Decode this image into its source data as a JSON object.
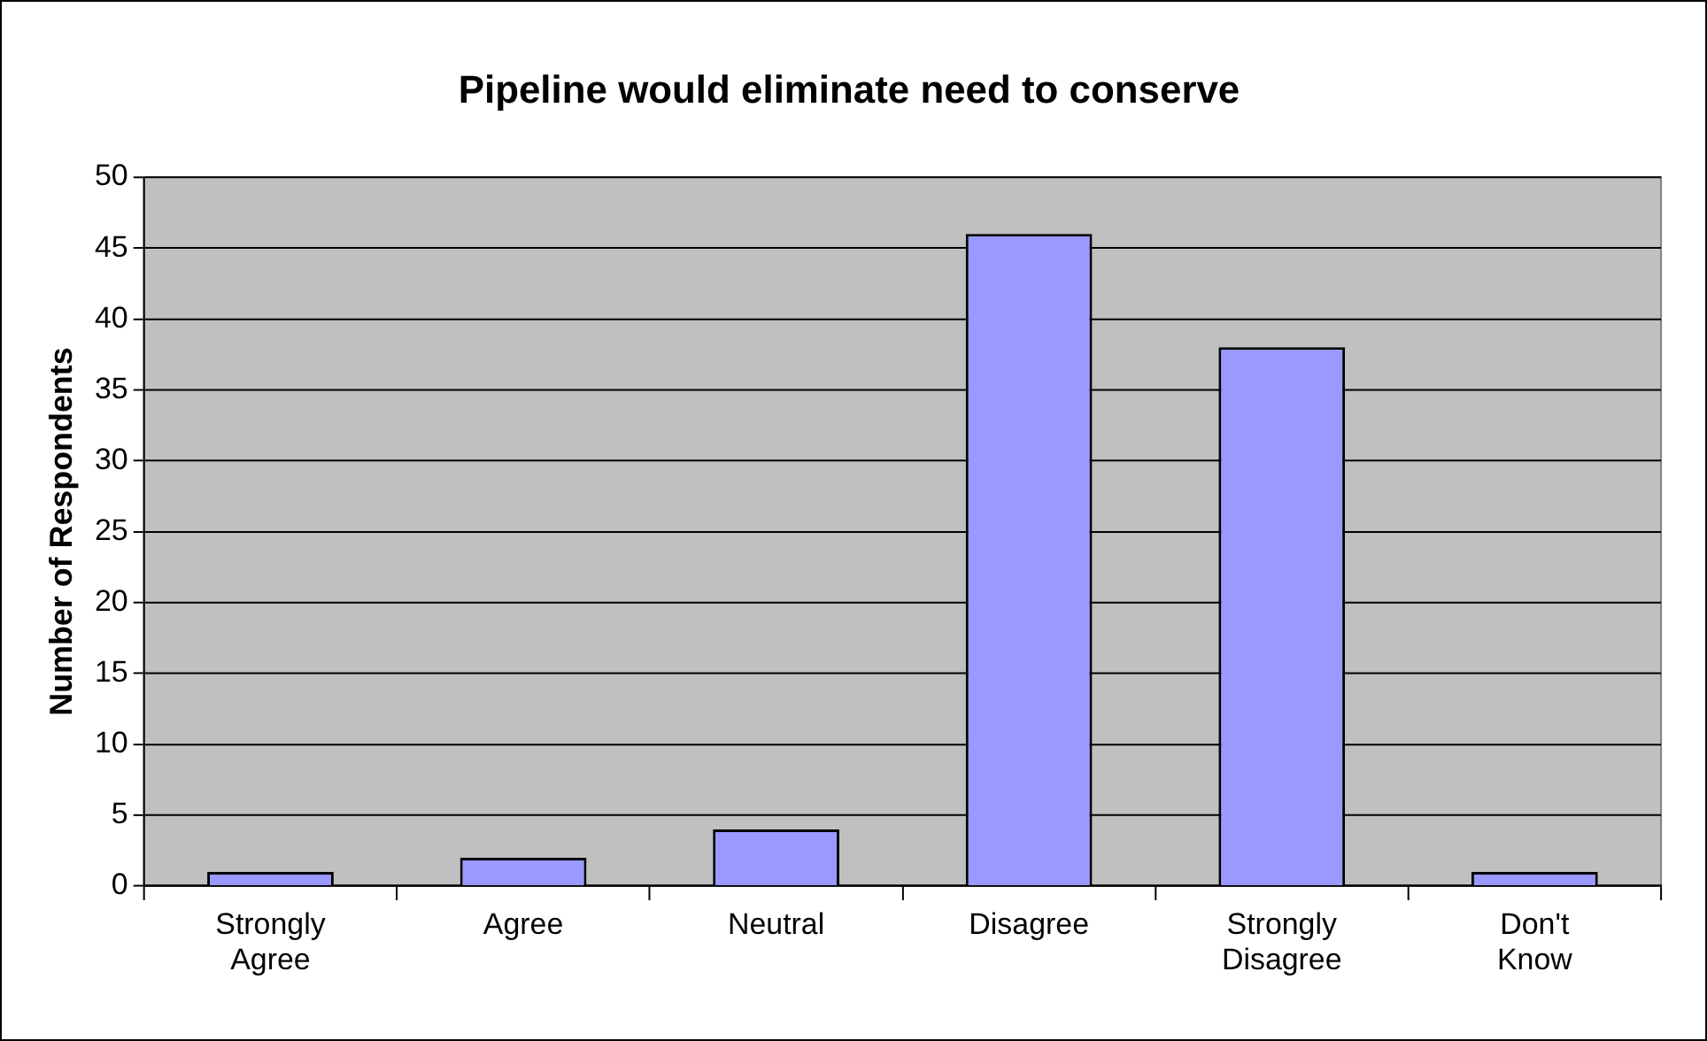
{
  "chart_data": {
    "type": "bar",
    "title": "Pipeline would eliminate need to conserve",
    "ylabel": "Number of Respondents",
    "categories": [
      "Strongly Agree",
      "Agree",
      "Neutral",
      "Disagree",
      "Strongly Disagree",
      "Don't Know"
    ],
    "values": [
      1,
      2,
      4,
      46,
      38,
      1
    ],
    "color": "#9999ff",
    "ylim": [
      0,
      50
    ],
    "yticks": [
      0,
      5,
      10,
      15,
      20,
      25,
      30,
      35,
      40,
      45,
      50
    ],
    "grid": "y",
    "legend": false
  }
}
